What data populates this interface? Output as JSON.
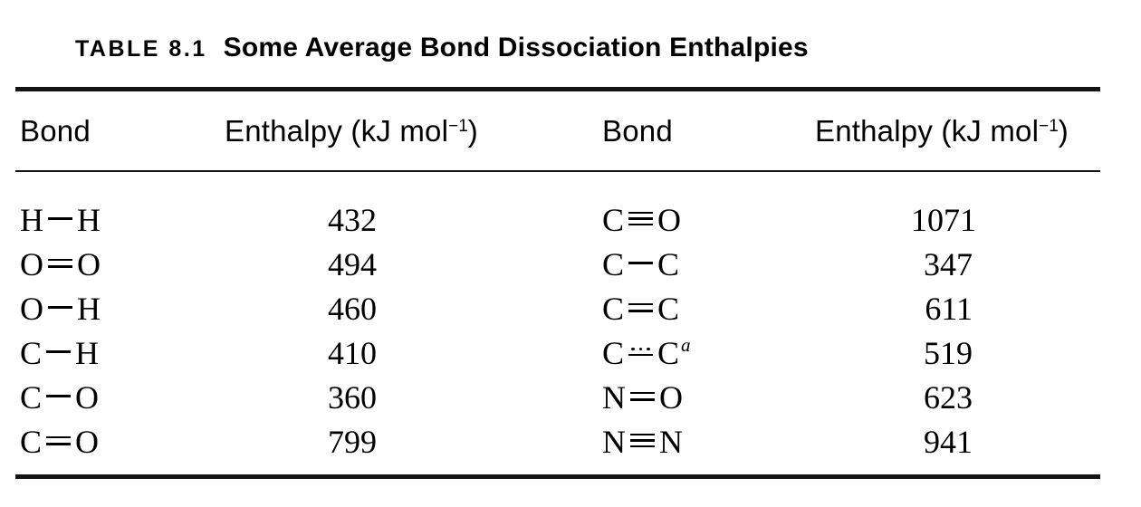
{
  "title": {
    "label": "TABLE 8.1",
    "text": "Some Average Bond Dissociation Enthalpies"
  },
  "table": {
    "header_bond": "Bond",
    "header_enthalpy": {
      "pre": "Enthalpy (kJ mol",
      "sup": "−1",
      "post": ")"
    },
    "rows": [
      {
        "left": {
          "atom1": "H",
          "bond": "single",
          "atom2": "H",
          "note": "",
          "symbol": "H—H",
          "enthalpy": "432"
        },
        "right": {
          "atom1": "C",
          "bond": "triple",
          "atom2": "O",
          "note": "",
          "symbol": "C≡O",
          "enthalpy": "1071"
        }
      },
      {
        "left": {
          "atom1": "O",
          "bond": "double",
          "atom2": "O",
          "note": "",
          "symbol": "O═O",
          "enthalpy": "494"
        },
        "right": {
          "atom1": "C",
          "bond": "single",
          "atom2": "C",
          "note": "",
          "symbol": "C—C",
          "enthalpy": "347"
        }
      },
      {
        "left": {
          "atom1": "O",
          "bond": "single",
          "atom2": "H",
          "note": "",
          "symbol": "O—H",
          "enthalpy": "460"
        },
        "right": {
          "atom1": "C",
          "bond": "double",
          "atom2": "C",
          "note": "",
          "symbol": "C═C",
          "enthalpy": "611"
        }
      },
      {
        "left": {
          "atom1": "C",
          "bond": "single",
          "atom2": "H",
          "note": "",
          "symbol": "C—H",
          "enthalpy": "410"
        },
        "right": {
          "atom1": "C",
          "bond": "partial",
          "atom2": "C",
          "note": "a",
          "symbol": "C⋯C",
          "enthalpy": "519"
        }
      },
      {
        "left": {
          "atom1": "C",
          "bond": "single",
          "atom2": "O",
          "note": "",
          "symbol": "C—O",
          "enthalpy": "360"
        },
        "right": {
          "atom1": "N",
          "bond": "double",
          "atom2": "O",
          "note": "",
          "symbol": "N═O",
          "enthalpy": "623"
        }
      },
      {
        "left": {
          "atom1": "C",
          "bond": "double",
          "atom2": "O",
          "note": "",
          "symbol": "C═O",
          "enthalpy": "799"
        },
        "right": {
          "atom1": "N",
          "bond": "triple",
          "atom2": "N",
          "note": "",
          "symbol": "N≡N",
          "enthalpy": "941"
        }
      }
    ]
  },
  "colors": {
    "text": "#000000",
    "rule": "#141414",
    "background": "#ffffff"
  }
}
